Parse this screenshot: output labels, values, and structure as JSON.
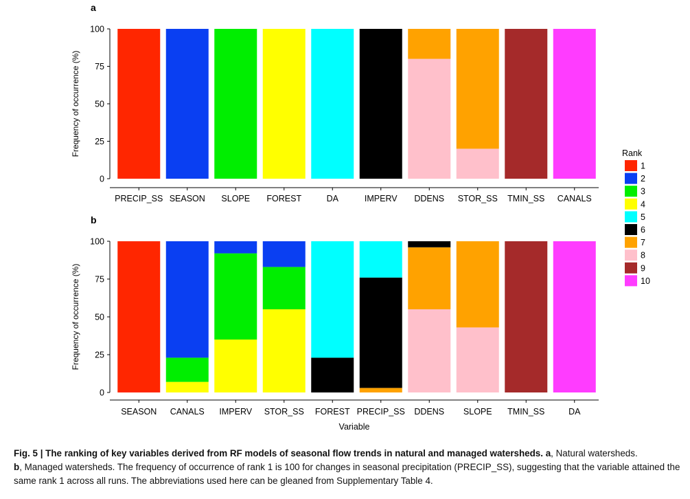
{
  "legend": {
    "title": "Rank",
    "ranks": [
      "1",
      "2",
      "3",
      "4",
      "5",
      "6",
      "7",
      "8",
      "9",
      "10"
    ],
    "colors": [
      "#ff2600",
      "#0a3ff2",
      "#00ee00",
      "#ffff00",
      "#00ffff",
      "#000000",
      "#ffa200",
      "#ffc0cb",
      "#a52a2a",
      "#ff3cff"
    ]
  },
  "chart_data": [
    {
      "type": "bar",
      "stacked": true,
      "panel_label": "a",
      "xlabel": "",
      "ylabel": "Frequency of occurrence (%)",
      "ylim": [
        0,
        100
      ],
      "yticks": [
        "0",
        "25",
        "50",
        "75",
        "100"
      ],
      "categories": [
        "PRECIP_SS",
        "SEASON",
        "SLOPE",
        "FOREST",
        "DA",
        "IMPERV",
        "DDENS",
        "STOR_SS",
        "TMIN_SS",
        "CANALS"
      ],
      "stacks": [
        [
          {
            "rank": 1,
            "value": 100
          }
        ],
        [
          {
            "rank": 2,
            "value": 100
          }
        ],
        [
          {
            "rank": 3,
            "value": 100
          }
        ],
        [
          {
            "rank": 4,
            "value": 100
          }
        ],
        [
          {
            "rank": 5,
            "value": 100
          }
        ],
        [
          {
            "rank": 6,
            "value": 100
          }
        ],
        [
          {
            "rank": 8,
            "value": 80
          },
          {
            "rank": 7,
            "value": 20
          }
        ],
        [
          {
            "rank": 8,
            "value": 20
          },
          {
            "rank": 7,
            "value": 80
          }
        ],
        [
          {
            "rank": 9,
            "value": 100
          }
        ],
        [
          {
            "rank": 10,
            "value": 100
          }
        ]
      ]
    },
    {
      "type": "bar",
      "stacked": true,
      "panel_label": "b",
      "xlabel": "Variable",
      "ylabel": "Frequency of occurrence (%)",
      "ylim": [
        0,
        100
      ],
      "yticks": [
        "0",
        "25",
        "50",
        "75",
        "100"
      ],
      "categories": [
        "SEASON",
        "CANALS",
        "IMPERV",
        "STOR_SS",
        "FOREST",
        "PRECIP_SS",
        "DDENS",
        "SLOPE",
        "TMIN_SS",
        "DA"
      ],
      "stacks": [
        [
          {
            "rank": 1,
            "value": 100
          }
        ],
        [
          {
            "rank": 4,
            "value": 7
          },
          {
            "rank": 3,
            "value": 16
          },
          {
            "rank": 2,
            "value": 77
          }
        ],
        [
          {
            "rank": 4,
            "value": 35
          },
          {
            "rank": 3,
            "value": 57
          },
          {
            "rank": 2,
            "value": 8
          }
        ],
        [
          {
            "rank": 4,
            "value": 55
          },
          {
            "rank": 3,
            "value": 28
          },
          {
            "rank": 2,
            "value": 17
          }
        ],
        [
          {
            "rank": 6,
            "value": 23
          },
          {
            "rank": 5,
            "value": 77
          }
        ],
        [
          {
            "rank": 7,
            "value": 3
          },
          {
            "rank": 6,
            "value": 73
          },
          {
            "rank": 5,
            "value": 24
          }
        ],
        [
          {
            "rank": 8,
            "value": 55
          },
          {
            "rank": 7,
            "value": 41
          },
          {
            "rank": 6,
            "value": 4
          }
        ],
        [
          {
            "rank": 8,
            "value": 43
          },
          {
            "rank": 7,
            "value": 57
          }
        ],
        [
          {
            "rank": 9,
            "value": 100
          }
        ],
        [
          {
            "rank": 10,
            "value": 100
          }
        ]
      ]
    }
  ],
  "caption": {
    "label": "Fig. 5 |",
    "bold_text": "The ranking of key variables derived from RF models of seasonal flow trends in natural and managed watersheds.",
    "a_letter": "a",
    "a_text": ", Natural watersheds.",
    "b_letter": "b",
    "b_text": ", Managed watersheds. The frequency of occurrence of rank 1 is 100 for changes in seasonal precipitation (PRECIP_SS), suggesting that the variable attained the same rank 1 across all runs. The abbreviations used here can be gleaned from Supplementary Table 4."
  }
}
